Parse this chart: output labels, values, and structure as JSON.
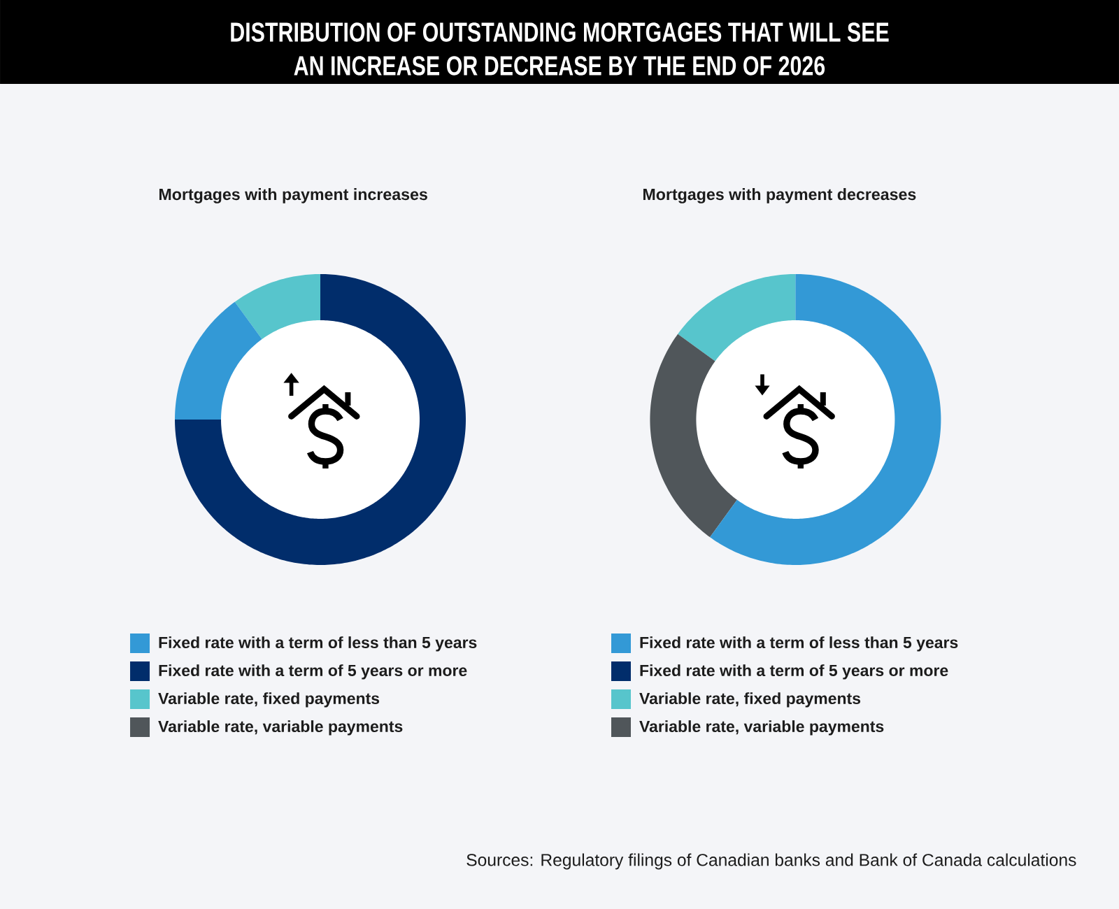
{
  "chart_data": [
    {
      "type": "other",
      "title": "DISTRIBUTION OF OUTSTANDING MORTGAGES THAT WILL SEE AN INCREASE OR DECREASE BY THE END OF 2026",
      "annotations": [
        "Sources: Regulatory filings of Canadian banks and Bank of Canada calculations"
      ]
    },
    {
      "type": "donut",
      "title": "Mortgages with payment increases",
      "categories": [
        "Fixed rate with a term of less than 5 years",
        "Fixed rate with a term of 5 years or more",
        "Variable rate, fixed payments",
        "Variable rate, variable payments"
      ],
      "values": [
        15,
        75,
        10,
        0
      ],
      "colors": [
        "#3399d6",
        "#012d6b",
        "#57c5cc",
        "#50565a"
      ],
      "legend": "bottom"
    },
    {
      "type": "donut",
      "title": "Mortgages with payment decreases",
      "categories": [
        "Fixed rate with a term of less than 5 years",
        "Fixed rate with a term of 5 years or more",
        "Variable rate, fixed payments",
        "Variable rate, variable payments"
      ],
      "values": [
        60,
        0,
        15,
        25
      ],
      "colors": [
        "#3399d6",
        "#012d6b",
        "#57c5cc",
        "#50565a"
      ],
      "legend": "bottom"
    }
  ]
}
